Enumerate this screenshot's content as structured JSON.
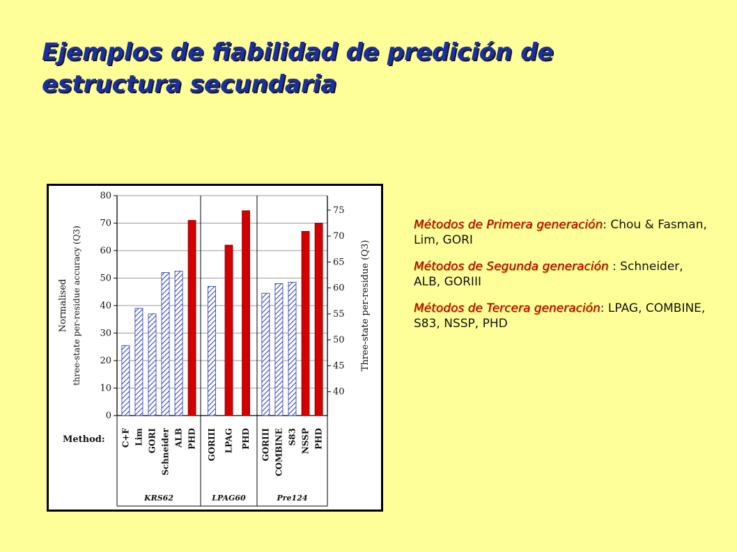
{
  "title_line1": "Ejemplos de fiabilidad de predición de",
  "title_line2": "estructura secundaria",
  "notes": [
    {
      "head": "Métodos de Primera generación",
      "text": ": Chou & Fasman, Lim, GORI"
    },
    {
      "head": "Métodos de Segunda generación ",
      "text": ": Schneider, ALB, GORIII"
    },
    {
      "head": "Métodos de Tercera generación",
      "text": ": LPAG, COMBINE, S83, NSSP, PHD"
    }
  ],
  "colors": {
    "background": "#FFFF99",
    "title": "#1A2FA0",
    "red_bar": "#D40000",
    "hatch": "#3344CC",
    "note_head": "#B00000"
  },
  "chart_data": {
    "type": "bar",
    "ylabel_left_line1": "Normalised",
    "ylabel_left_line2": "three-state per-residue accuracy (Q3)",
    "ylabel_right": "Three-state per-residue (Q3)",
    "ylim": [
      0,
      80
    ],
    "yticks": [
      "0",
      "10",
      "20",
      "30",
      "40",
      "50",
      "60",
      "70",
      "80"
    ],
    "ylim_right": [
      35.4,
      77.8
    ],
    "yticks_right": [
      "40",
      "45",
      "50",
      "55",
      "60",
      "65",
      "70",
      "75"
    ],
    "method_label": "Method:",
    "groups": [
      {
        "name": "KRS62",
        "bars": [
          {
            "label": "C+F",
            "value": 25.5,
            "style": "hatched"
          },
          {
            "label": "Lim",
            "value": 39,
            "style": "hatched"
          },
          {
            "label": "GORI",
            "value": 37,
            "style": "hatched"
          },
          {
            "label": "Schneider",
            "value": 52,
            "style": "hatched"
          },
          {
            "label": "ALB",
            "value": 52.5,
            "style": "hatched"
          },
          {
            "label": "PHD",
            "value": 71,
            "style": "solid"
          }
        ]
      },
      {
        "name": "LPAG60",
        "bars": [
          {
            "label": "GORIII",
            "value": 47,
            "style": "hatched"
          },
          {
            "label": "LPAG",
            "value": 62,
            "style": "solid"
          },
          {
            "label": "PHD",
            "value": 74.5,
            "style": "solid"
          }
        ]
      },
      {
        "name": "Pre124",
        "bars": [
          {
            "label": "GORIII",
            "value": 44.5,
            "style": "hatched"
          },
          {
            "label": "COMBINE",
            "value": 48,
            "style": "hatched"
          },
          {
            "label": "S83",
            "value": 48.5,
            "style": "hatched"
          },
          {
            "label": "NSSP",
            "value": 67,
            "style": "solid"
          },
          {
            "label": "PHD",
            "value": 70,
            "style": "solid"
          }
        ]
      }
    ]
  }
}
